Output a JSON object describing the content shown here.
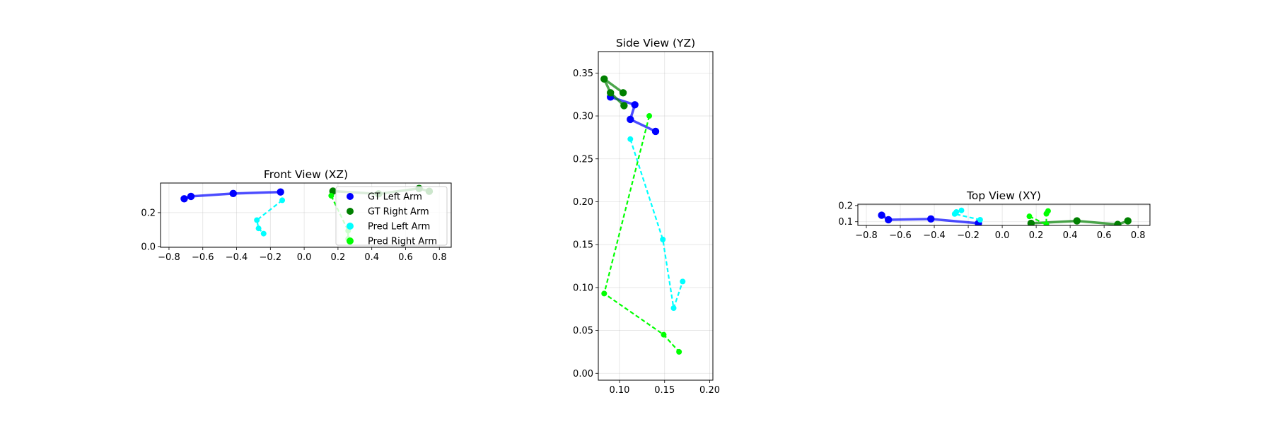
{
  "chart_data": [
    {
      "type": "line",
      "title": "Front View (XZ)",
      "xlabel": "",
      "ylabel": "",
      "xlim": [
        -0.85,
        0.87
      ],
      "ylim": [
        -0.005,
        0.375
      ],
      "xticks": [
        -0.8,
        -0.6,
        -0.4,
        -0.2,
        0.0,
        0.2,
        0.4,
        0.6,
        0.8
      ],
      "xtick_labels": [
        "−0.8",
        "−0.6",
        "−0.4",
        "−0.2",
        "0.0",
        "0.2",
        "0.4",
        "0.6",
        "0.8"
      ],
      "yticks": [
        0.0,
        0.2
      ],
      "ytick_labels": [
        "0.0",
        "0.2"
      ],
      "grid": true,
      "legend": {
        "placement": "right",
        "entries": [
          {
            "label": "GT Left Arm",
            "color": "#0000ff"
          },
          {
            "label": "GT Right Arm",
            "color": "#008000"
          },
          {
            "label": "Pred Left Arm",
            "color": "#00ffff"
          },
          {
            "label": "Pred Right Arm",
            "color": "#00ff00"
          }
        ]
      },
      "series": [
        {
          "name": "GT Left Arm",
          "style": "solid",
          "color": "#0000ff",
          "points": [
            [
              -0.14,
              0.322
            ],
            [
              -0.42,
              0.313
            ],
            [
              -0.67,
              0.296
            ],
            [
              -0.71,
              0.282
            ]
          ]
        },
        {
          "name": "GT Right Arm",
          "style": "solid",
          "color": "#008000",
          "points": [
            [
              0.17,
              0.327
            ],
            [
              0.44,
              0.311
            ],
            [
              0.68,
              0.343
            ],
            [
              0.74,
              0.326
            ]
          ]
        },
        {
          "name": "Pred Left Arm",
          "style": "dashed",
          "color": "#00ffff",
          "points": [
            [
              -0.13,
              0.273
            ],
            [
              -0.28,
              0.156
            ],
            [
              -0.27,
              0.107
            ],
            [
              -0.24,
              0.076
            ]
          ]
        },
        {
          "name": "Pred Right Arm",
          "style": "dashed",
          "color": "#00ff00",
          "points": [
            [
              0.16,
              0.3
            ],
            [
              0.26,
              0.093
            ],
            [
              0.26,
              0.045
            ],
            [
              0.27,
              0.025
            ]
          ]
        }
      ]
    },
    {
      "type": "line",
      "title": "Side View (YZ)",
      "xlabel": "",
      "ylabel": "",
      "xlim": [
        0.0765,
        0.2035
      ],
      "ylim": [
        -0.008,
        0.375
      ],
      "xticks": [
        0.1,
        0.15,
        0.2
      ],
      "xtick_labels": [
        "0.10",
        "0.15",
        "0.20"
      ],
      "yticks": [
        0.0,
        0.05,
        0.1,
        0.15,
        0.2,
        0.25,
        0.3,
        0.35
      ],
      "ytick_labels": [
        "0.00",
        "0.05",
        "0.10",
        "0.15",
        "0.20",
        "0.25",
        "0.30",
        "0.35"
      ],
      "grid": true,
      "series": [
        {
          "name": "GT Left Arm",
          "style": "solid",
          "color": "#0000ff",
          "points": [
            [
              0.14,
              0.282
            ],
            [
              0.112,
              0.296
            ],
            [
              0.117,
              0.313
            ],
            [
              0.09,
              0.322
            ]
          ]
        },
        {
          "name": "GT Right Arm",
          "style": "solid",
          "color": "#008000",
          "points": [
            [
              0.105,
              0.312
            ],
            [
              0.09,
              0.327
            ],
            [
              0.083,
              0.343
            ],
            [
              0.104,
              0.327
            ]
          ]
        },
        {
          "name": "Pred Left Arm",
          "style": "dashed",
          "color": "#00ffff",
          "points": [
            [
              0.112,
              0.273
            ],
            [
              0.148,
              0.156
            ],
            [
              0.16,
              0.076
            ],
            [
              0.17,
              0.107
            ]
          ]
        },
        {
          "name": "Pred Right Arm",
          "style": "dashed",
          "color": "#00ff00",
          "points": [
            [
              0.133,
              0.3
            ],
            [
              0.083,
              0.093
            ],
            [
              0.149,
              0.045
            ],
            [
              0.166,
              0.025
            ]
          ]
        }
      ]
    },
    {
      "type": "line",
      "title": "Top View (XY)",
      "xlabel": "",
      "ylabel": "",
      "xlim": [
        -0.85,
        0.87
      ],
      "ylim": [
        0.077,
        0.208
      ],
      "xticks": [
        -0.8,
        -0.6,
        -0.4,
        -0.2,
        0.0,
        0.2,
        0.4,
        0.6,
        0.8
      ],
      "xtick_labels": [
        "−0.8",
        "−0.6",
        "−0.4",
        "−0.2",
        "0.0",
        "0.2",
        "0.4",
        "0.6",
        "0.8"
      ],
      "yticks": [
        0.1,
        0.2
      ],
      "ytick_labels": [
        "0.1",
        "0.2"
      ],
      "grid": true,
      "series": [
        {
          "name": "GT Left Arm",
          "style": "solid",
          "color": "#0000ff",
          "points": [
            [
              -0.14,
              0.09
            ],
            [
              -0.42,
              0.117
            ],
            [
              -0.67,
              0.112
            ],
            [
              -0.71,
              0.14
            ]
          ]
        },
        {
          "name": "GT Right Arm",
          "style": "solid",
          "color": "#008000",
          "points": [
            [
              0.17,
              0.09
            ],
            [
              0.44,
              0.105
            ],
            [
              0.68,
              0.083
            ],
            [
              0.74,
              0.105
            ]
          ]
        },
        {
          "name": "Pred Left Arm",
          "style": "dashed",
          "color": "#00ffff",
          "points": [
            [
              -0.13,
              0.112
            ],
            [
              -0.28,
              0.148
            ],
            [
              -0.27,
              0.16
            ],
            [
              -0.24,
              0.17
            ]
          ]
        },
        {
          "name": "Pred Right Arm",
          "style": "dashed",
          "color": "#00ff00",
          "points": [
            [
              0.16,
              0.133
            ],
            [
              0.26,
              0.083
            ],
            [
              0.26,
              0.149
            ],
            [
              0.27,
              0.166
            ]
          ]
        }
      ]
    }
  ]
}
